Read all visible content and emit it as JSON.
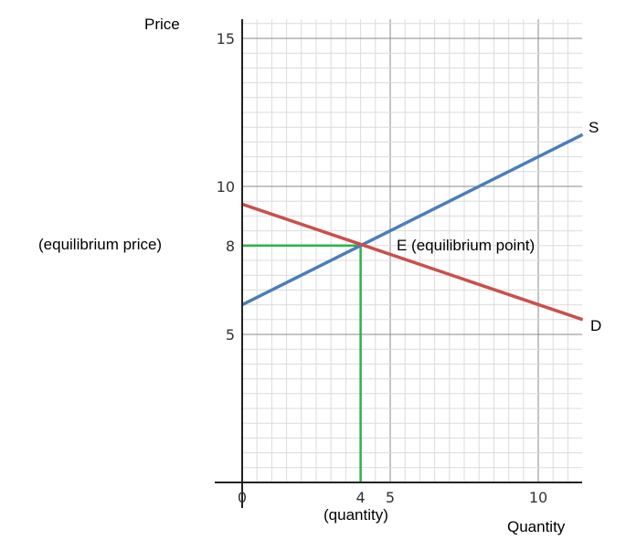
{
  "chart_data": {
    "type": "line",
    "title": "",
    "ylabel": "Price",
    "xlabel": "Quantity",
    "xlim": [
      0,
      11.5
    ],
    "ylim": [
      0,
      15.5
    ],
    "grid": true,
    "x_ticks": [
      {
        "value": 0,
        "label": "0"
      },
      {
        "value": 4,
        "label": "4"
      },
      {
        "value": 5,
        "label": "5"
      },
      {
        "value": 10,
        "label": "10"
      }
    ],
    "y_ticks": [
      {
        "value": 5,
        "label": "5"
      },
      {
        "value": 8,
        "label": "8"
      },
      {
        "value": 10,
        "label": "10"
      },
      {
        "value": 15,
        "label": "15"
      }
    ],
    "series": [
      {
        "name": "S",
        "color": "#4a7ebb",
        "x": [
          0,
          11.5
        ],
        "y": [
          6,
          11.75
        ]
      },
      {
        "name": "D",
        "color": "#c9504c",
        "x": [
          0,
          11.5
        ],
        "y": [
          9.4,
          5.5
        ]
      }
    ],
    "equilibrium": {
      "x": 4,
      "y": 8,
      "color": "#2db34a",
      "point_label": "E (equilibrium point)",
      "price_label": "(equilibrium price)",
      "quantity_label": "(quantity)"
    }
  }
}
